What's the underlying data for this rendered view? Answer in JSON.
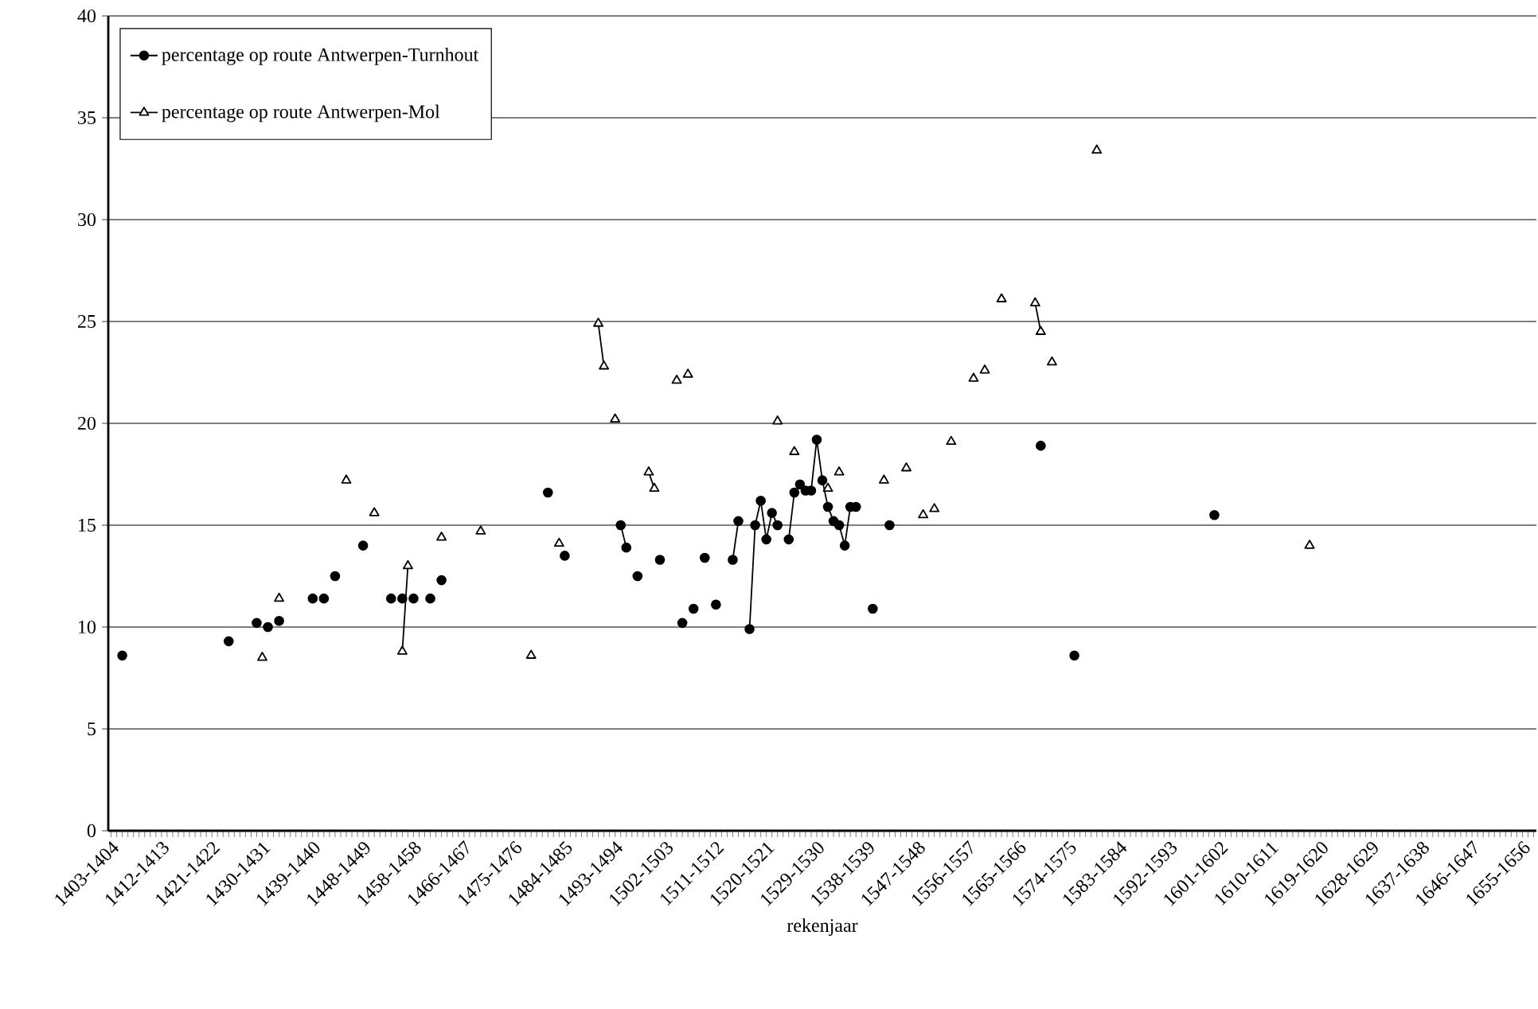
{
  "chart_data": {
    "type": "line",
    "xlabel": "rekenjaar",
    "categories": [
      "1403-1404",
      null,
      null,
      null,
      null,
      null,
      null,
      null,
      null,
      "1412-1413",
      null,
      null,
      null,
      null,
      null,
      null,
      null,
      null,
      "1421-1422",
      null,
      null,
      null,
      null,
      null,
      null,
      null,
      null,
      "1430-1431",
      null,
      null,
      null,
      null,
      null,
      null,
      null,
      null,
      "1439-1440",
      null,
      null,
      null,
      null,
      null,
      null,
      null,
      null,
      "1448-1449",
      null,
      null,
      null,
      null,
      null,
      null,
      null,
      null,
      "1458-1458",
      null,
      null,
      null,
      null,
      null,
      null,
      null,
      null,
      "1466-1467",
      null,
      null,
      null,
      null,
      null,
      null,
      null,
      null,
      "1475-1476",
      null,
      null,
      null,
      null,
      null,
      null,
      null,
      null,
      "1484-1485",
      null,
      null,
      null,
      null,
      null,
      null,
      null,
      null,
      "1493-1494",
      null,
      null,
      null,
      null,
      null,
      null,
      null,
      null,
      "1502-1503",
      null,
      null,
      null,
      null,
      null,
      null,
      null,
      null,
      "1511-1512",
      null,
      null,
      null,
      null,
      null,
      null,
      null,
      null,
      "1520-1521",
      null,
      null,
      null,
      null,
      null,
      null,
      null,
      null,
      "1529-1530",
      null,
      null,
      null,
      null,
      null,
      null,
      null,
      null,
      "1538-1539",
      null,
      null,
      null,
      null,
      null,
      null,
      null,
      null,
      "1547-1548",
      null,
      null,
      null,
      null,
      null,
      null,
      null,
      null,
      "1556-1557",
      null,
      null,
      null,
      null,
      null,
      null,
      null,
      null,
      "1565-1566",
      null,
      null,
      null,
      null,
      null,
      null,
      null,
      null,
      "1574-1575",
      null,
      null,
      null,
      null,
      null,
      null,
      null,
      null,
      "1583-1584",
      null,
      null,
      null,
      null,
      null,
      null,
      null,
      null,
      "1592-1593",
      null,
      null,
      null,
      null,
      null,
      null,
      null,
      null,
      "1601-1602",
      null,
      null,
      null,
      null,
      null,
      null,
      null,
      null,
      "1610-1611",
      null,
      null,
      null,
      null,
      null,
      null,
      null,
      null,
      "1619-1620",
      null,
      null,
      null,
      null,
      null,
      null,
      null,
      null,
      "1628-1629",
      null,
      null,
      null,
      null,
      null,
      null,
      null,
      null,
      "1637-1638",
      null,
      null,
      null,
      null,
      null,
      null,
      null,
      null,
      "1646-1647",
      null,
      null,
      null,
      null,
      null,
      null,
      null,
      null,
      "1655-1656",
      null,
      null
    ],
    "series": [
      {
        "name": "percentage op route Antwerpen-Turnhout",
        "color": "#000000",
        "marker": "circle",
        "values": [
          null,
          null,
          8.6,
          null,
          null,
          null,
          null,
          null,
          null,
          null,
          null,
          null,
          null,
          null,
          null,
          null,
          null,
          null,
          null,
          null,
          null,
          9.3,
          null,
          null,
          null,
          null,
          10.2,
          null,
          10.0,
          null,
          10.3,
          null,
          null,
          null,
          null,
          null,
          11.4,
          null,
          11.4,
          null,
          12.5,
          null,
          null,
          null,
          null,
          14.0,
          null,
          null,
          null,
          null,
          11.4,
          null,
          11.4,
          null,
          11.4,
          null,
          null,
          11.4,
          null,
          12.3,
          null,
          null,
          null,
          null,
          null,
          null,
          null,
          null,
          null,
          null,
          null,
          null,
          null,
          null,
          null,
          null,
          null,
          null,
          16.6,
          null,
          null,
          13.5,
          null,
          null,
          null,
          null,
          null,
          null,
          null,
          null,
          null,
          15.0,
          13.9,
          null,
          12.5,
          null,
          null,
          null,
          13.3,
          null,
          null,
          null,
          10.2,
          null,
          10.9,
          null,
          13.4,
          null,
          11.1,
          null,
          null,
          13.3,
          15.2,
          null,
          9.9,
          15.0,
          16.2,
          14.3,
          15.6,
          15.0,
          null,
          14.3,
          16.6,
          17.0,
          16.7,
          16.7,
          19.2,
          17.2,
          15.9,
          15.2,
          15.0,
          14.0,
          15.9,
          15.9,
          null,
          null,
          10.9,
          null,
          null,
          15.0,
          null,
          null,
          null,
          null,
          null,
          null,
          null,
          null,
          null,
          null,
          null,
          null,
          null,
          null,
          null,
          null,
          null,
          null,
          null,
          null,
          null,
          null,
          null,
          null,
          null,
          null,
          18.9,
          null,
          null,
          null,
          null,
          null,
          8.6,
          null,
          null,
          null,
          null,
          null,
          null,
          null,
          null,
          null,
          null,
          null,
          null,
          null,
          null,
          null,
          null,
          null,
          null,
          null,
          null,
          null,
          null,
          null,
          null,
          15.5,
          null,
          null,
          null,
          null,
          null,
          null,
          null,
          null,
          null,
          null,
          null,
          null,
          null,
          null,
          null,
          null,
          null,
          null,
          null,
          null,
          null,
          null,
          null,
          null,
          null,
          null,
          null,
          null,
          null,
          null,
          null,
          null,
          null,
          null,
          null,
          null,
          null,
          null,
          null,
          null,
          null,
          null,
          null,
          null,
          null,
          null,
          null,
          null,
          null,
          null,
          null,
          null,
          null,
          null,
          null,
          null,
          null
        ]
      },
      {
        "name": "percentage op route Antwerpen-Mol",
        "color": "#000000",
        "marker": "triangle",
        "values": [
          null,
          null,
          null,
          null,
          null,
          null,
          null,
          null,
          null,
          null,
          null,
          null,
          null,
          null,
          null,
          null,
          null,
          null,
          null,
          null,
          null,
          null,
          null,
          null,
          null,
          null,
          null,
          8.5,
          null,
          null,
          11.4,
          null,
          null,
          null,
          null,
          null,
          null,
          null,
          null,
          null,
          null,
          null,
          17.2,
          null,
          null,
          null,
          null,
          15.6,
          null,
          null,
          null,
          null,
          8.8,
          13.0,
          null,
          null,
          null,
          null,
          null,
          14.4,
          null,
          null,
          null,
          null,
          null,
          null,
          14.7,
          null,
          null,
          null,
          null,
          null,
          null,
          null,
          null,
          8.6,
          null,
          null,
          null,
          null,
          14.1,
          null,
          null,
          null,
          null,
          null,
          null,
          24.9,
          22.8,
          null,
          20.2,
          null,
          null,
          null,
          null,
          null,
          17.6,
          16.8,
          null,
          null,
          null,
          22.1,
          null,
          22.4,
          null,
          null,
          null,
          null,
          null,
          null,
          null,
          null,
          null,
          null,
          null,
          null,
          null,
          null,
          null,
          20.1,
          null,
          null,
          18.6,
          null,
          null,
          null,
          null,
          null,
          16.8,
          null,
          17.6,
          null,
          null,
          null,
          null,
          null,
          null,
          null,
          17.2,
          null,
          null,
          null,
          17.8,
          null,
          null,
          15.5,
          null,
          15.8,
          null,
          null,
          19.1,
          null,
          null,
          null,
          22.2,
          null,
          22.6,
          null,
          null,
          26.1,
          null,
          null,
          null,
          null,
          null,
          25.9,
          24.5,
          null,
          23.0,
          null,
          null,
          null,
          null,
          null,
          null,
          null,
          33.4,
          null,
          null,
          null,
          null,
          null,
          null,
          null,
          null,
          null,
          null,
          null,
          null,
          null,
          null,
          null,
          null,
          null,
          null,
          null,
          null,
          null,
          null,
          null,
          null,
          null,
          null,
          null,
          null,
          null,
          null,
          null,
          null,
          null,
          null,
          null,
          null,
          null,
          14.0,
          null,
          null,
          null,
          null,
          null,
          null,
          null,
          null,
          null,
          null,
          null,
          null,
          null,
          null,
          null,
          null,
          null,
          null,
          null,
          null,
          null,
          null,
          null,
          null,
          null,
          null,
          null,
          null,
          null,
          null,
          null,
          null,
          null,
          null,
          null,
          null,
          null,
          null,
          null,
          null
        ]
      }
    ],
    "ylim": [
      0,
      40
    ],
    "yticks": [
      0,
      5,
      10,
      15,
      20,
      25,
      30,
      35,
      40
    ],
    "grid": "y",
    "legend": "top left",
    "line_style": "solid"
  }
}
